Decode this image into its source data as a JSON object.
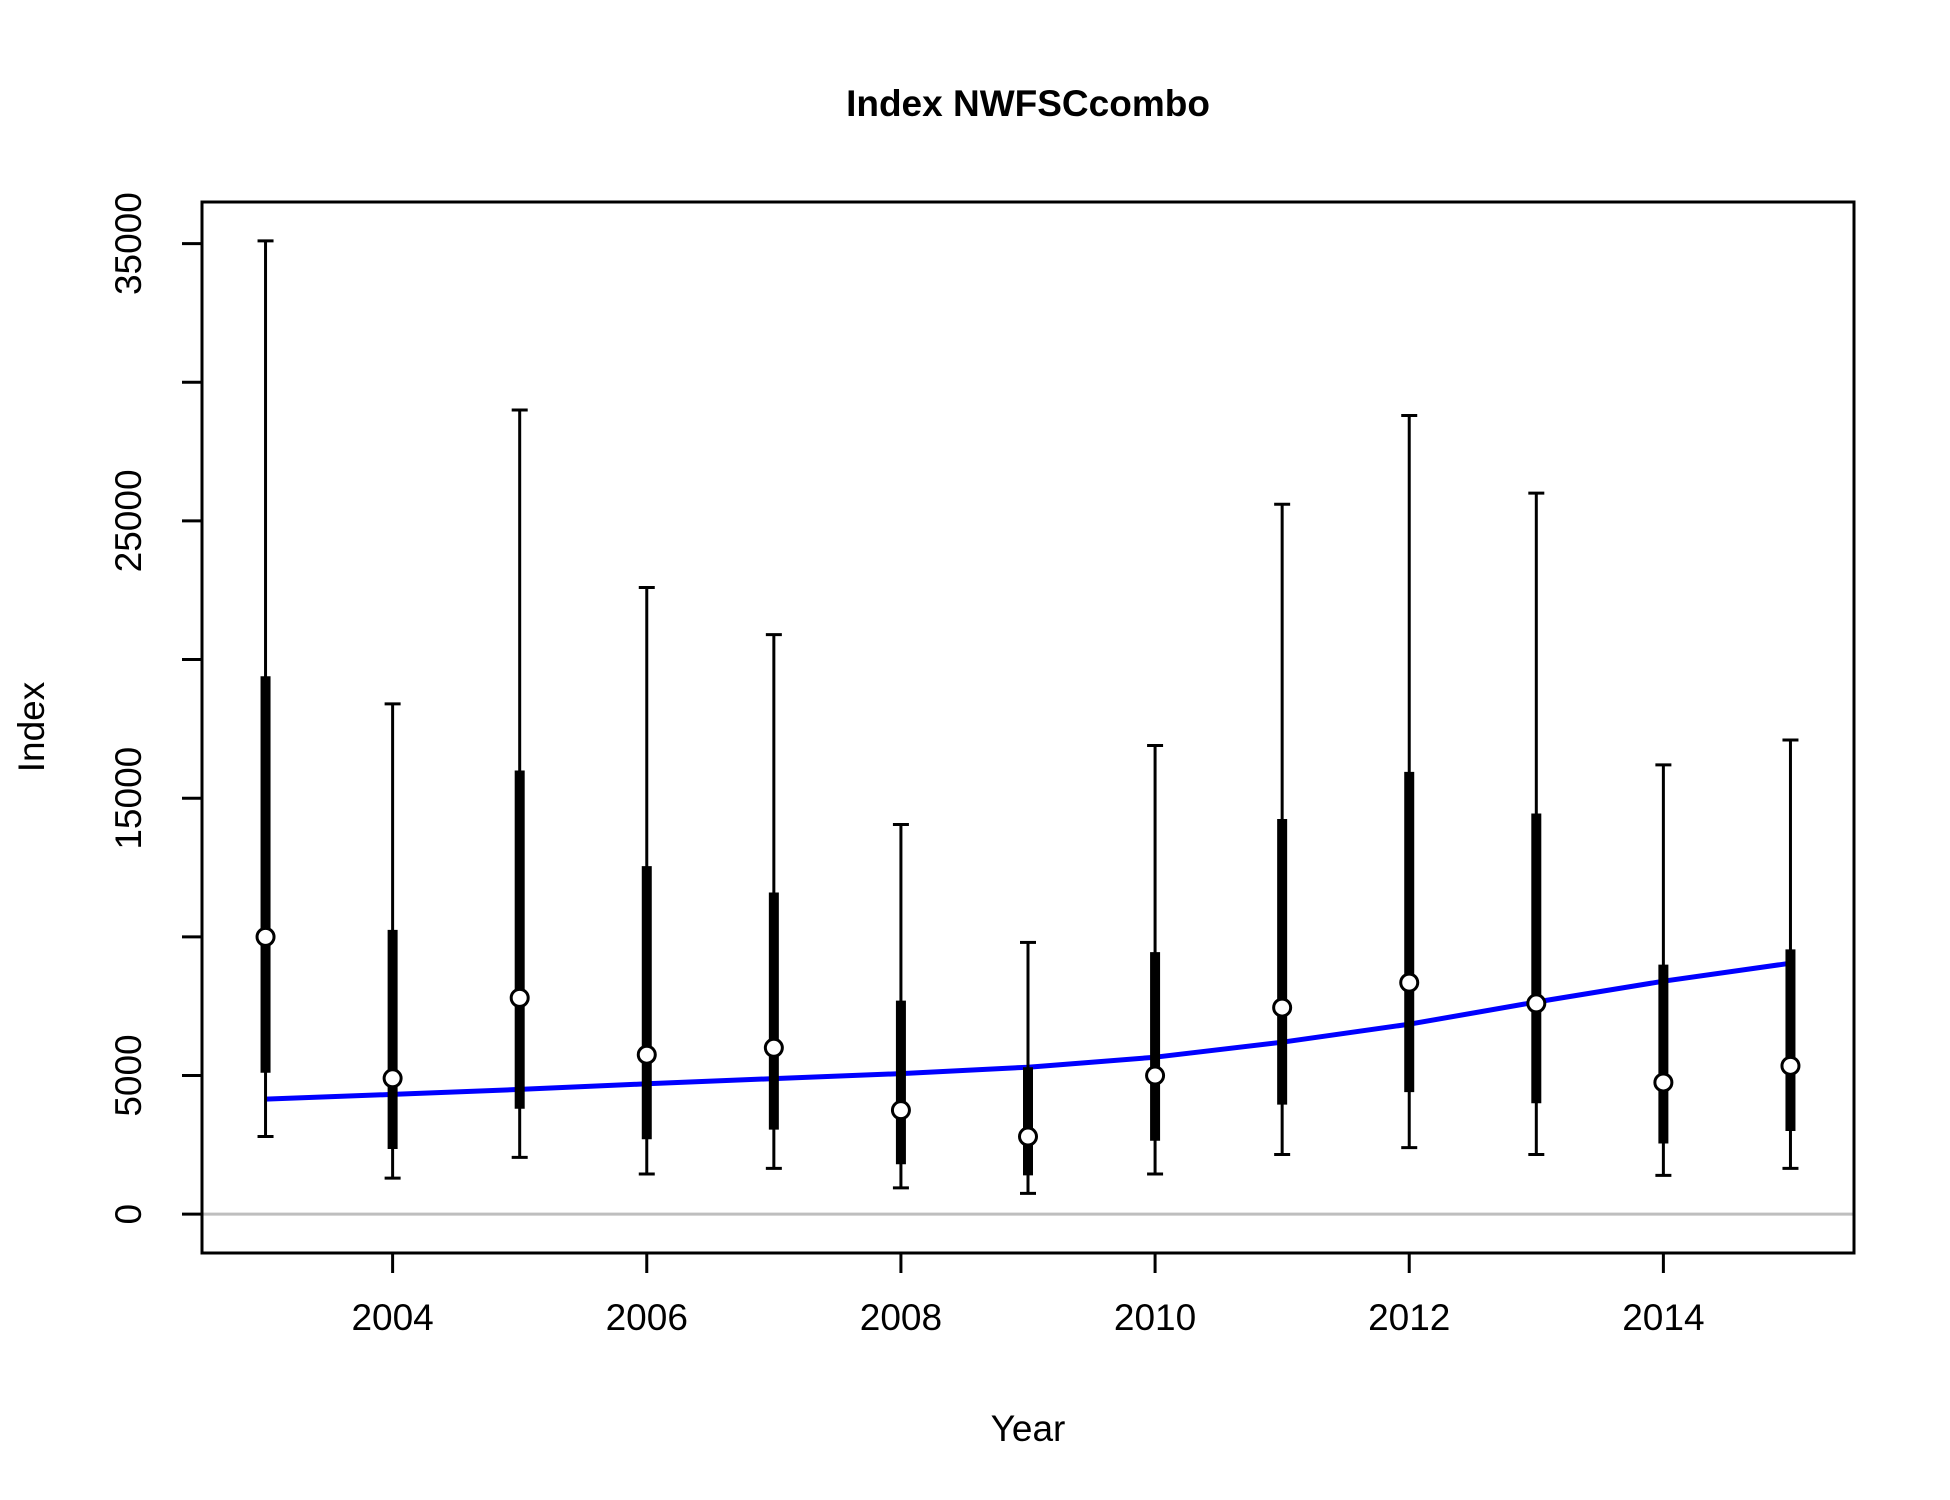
{
  "chart_data": {
    "type": "scatter",
    "title": "Index NWFSCcombo",
    "xlabel": "Year",
    "ylabel": "Index",
    "xlim": [
      2002.5,
      2015.5
    ],
    "ylim": [
      -1400,
      36500
    ],
    "x_ticks": [
      2004,
      2006,
      2008,
      2010,
      2012,
      2014
    ],
    "y_ticks": [
      0,
      5000,
      15000,
      25000,
      35000
    ],
    "y_minor_ticks": [
      10000,
      20000,
      30000
    ],
    "grid": false,
    "legend": "none",
    "colors": {
      "observed": "#000000",
      "fit": "#0000ff",
      "zero_line": "#bebebe"
    },
    "series": [
      {
        "x": [
          2003,
          2004,
          2005,
          2006,
          2007,
          2008,
          2009,
          2010,
          2011,
          2012,
          2013,
          2014,
          2015
        ],
        "values": [
          10000,
          4900,
          7800,
          5750,
          6000,
          3750,
          2800,
          5000,
          7450,
          8350,
          7600,
          4750,
          5350
        ],
        "inner_lower": [
          5100,
          2350,
          3800,
          2700,
          3050,
          1800,
          1400,
          2650,
          3950,
          4400,
          4000,
          2550,
          3000
        ],
        "inner_upper": [
          19400,
          10250,
          16000,
          12550,
          11600,
          7700,
          5300,
          9450,
          14250,
          15950,
          14450,
          9000,
          9550
        ],
        "outer_lower": [
          2800,
          1300,
          2050,
          1450,
          1650,
          950,
          750,
          1450,
          2150,
          2400,
          2150,
          1400,
          1650
        ],
        "outer_upper": [
          35100,
          18400,
          29000,
          22600,
          20900,
          14050,
          9800,
          16900,
          25600,
          28800,
          26000,
          16200,
          17100
        ]
      },
      {
        "x": [
          2003,
          2004,
          2005,
          2006,
          2007,
          2008,
          2009,
          2010,
          2011,
          2012,
          2013,
          2014,
          2015
        ],
        "values": [
          4150,
          4320,
          4500,
          4700,
          4890,
          5070,
          5300,
          5660,
          6200,
          6850,
          7650,
          8400,
          9050
        ]
      }
    ]
  }
}
